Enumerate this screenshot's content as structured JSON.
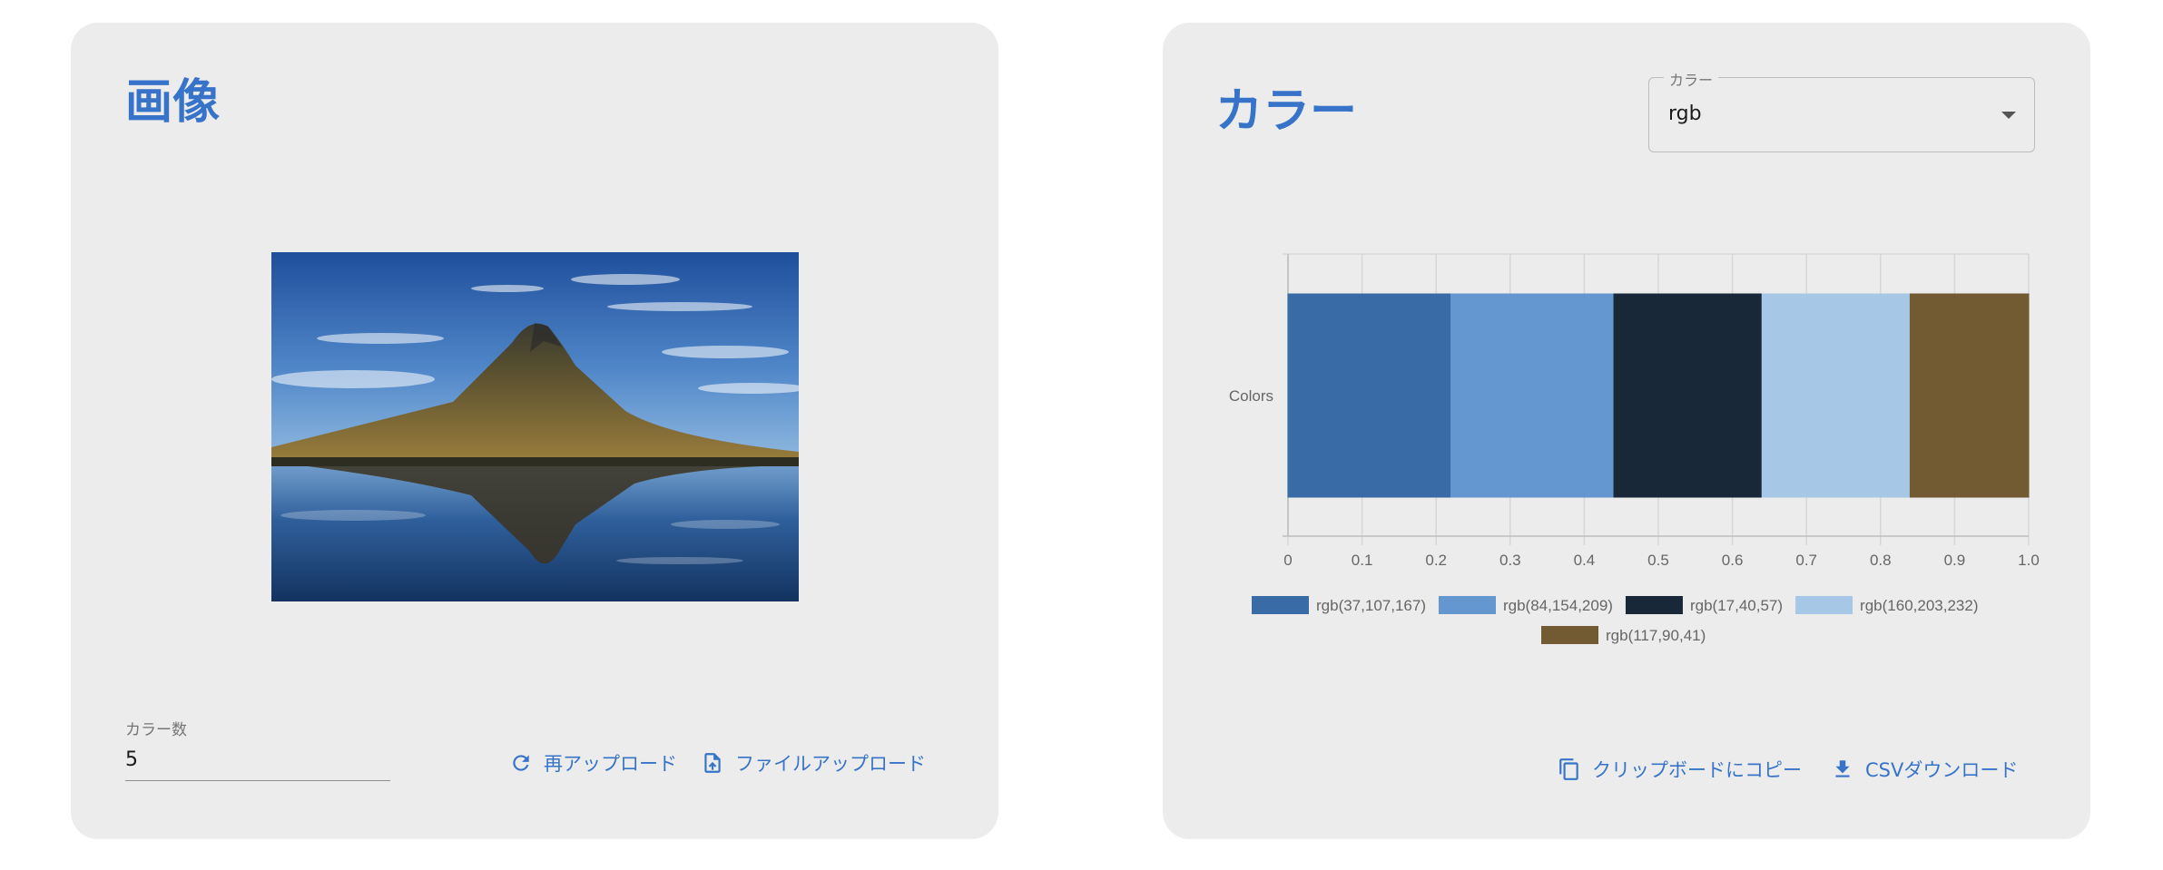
{
  "left_panel": {
    "title": "画像",
    "color_count_label": "カラー数",
    "color_count_value": "5",
    "reupload_label": "再アップロード",
    "fileupload_label": "ファイルアップロード"
  },
  "right_panel": {
    "title": "カラー",
    "select_label": "カラー",
    "select_value": "rgb",
    "copy_label": "クリップボードにコピー",
    "csv_label": "CSVダウンロード"
  },
  "colors": {
    "accent": "#3774c9",
    "card_bg": "#ececec"
  },
  "chart_data": {
    "type": "bar",
    "orientation": "horizontal-stacked",
    "categories": [
      "Colors"
    ],
    "xlim": [
      0,
      1.0
    ],
    "xticks": [
      "0",
      "0.1",
      "0.2",
      "0.3",
      "0.4",
      "0.5",
      "0.6",
      "0.7",
      "0.8",
      "0.9",
      "1.0"
    ],
    "grid": true,
    "legend_position": "bottom",
    "series": [
      {
        "name": "rgb(37,107,167)",
        "color": "#396ba7",
        "values": [
          0.22
        ]
      },
      {
        "name": "rgb(84,154,209)",
        "color": "#6497cf",
        "values": [
          0.22
        ]
      },
      {
        "name": "rgb(17,40,57)",
        "color": "#192839",
        "values": [
          0.2
        ]
      },
      {
        "name": "rgb(160,203,232)",
        "color": "#a6c8e6",
        "values": [
          0.2
        ]
      },
      {
        "name": "rgb(117,90,41)",
        "color": "#725a33",
        "values": [
          0.16
        ]
      }
    ]
  }
}
